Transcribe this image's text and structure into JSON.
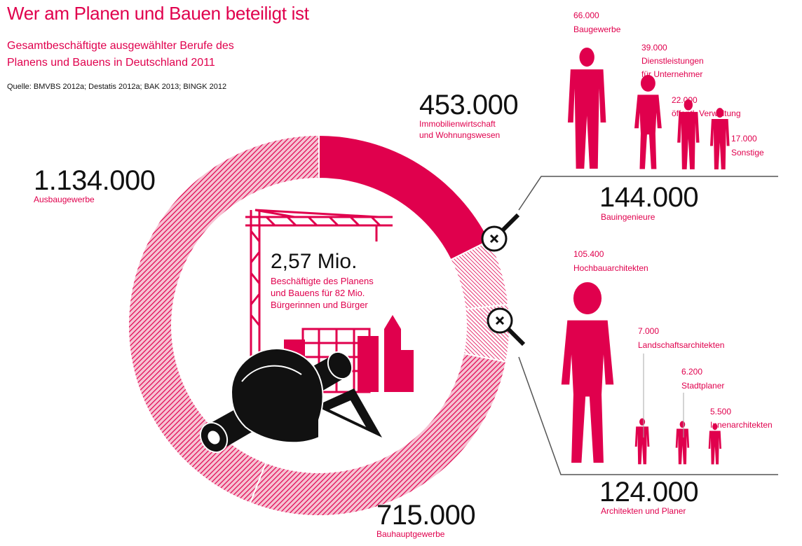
{
  "header": {
    "title": "Wer am Planen und Bauen beteiligt ist",
    "subtitle_line1": "Gesamtbeschäftigte ausgewählter Berufe des",
    "subtitle_line2": "Planens und Bauens in Deutschland 2011",
    "source": "Quelle: BMVBS 2012a; Destatis 2012a; BAK 2013; BINGK 2012"
  },
  "center": {
    "number": "2,57 Mio.",
    "line1": "Beschäftigte des Planens",
    "line2": "und Bauens für 82 Mio.",
    "line3": "Bürgerinnen und Bürger"
  },
  "ring_labels": {
    "immo_value": "453.000",
    "immo_line1": "Immobilienwirtschaft",
    "immo_line2": "und Wohnungswesen",
    "ausbau_value": "1.134.000",
    "ausbau_label": "Ausbaugewerbe",
    "bauhaupt_value": "715.000",
    "bauhaupt_label": "Bauhauptgewerbe"
  },
  "engineers": {
    "total_value": "144.000",
    "total_label": "Bauingenieure",
    "items": [
      {
        "value": "66.000",
        "label1": "Baugewerbe",
        "label2": ""
      },
      {
        "value": "39.000",
        "label1": "Dienstleistungen",
        "label2": "für Unternehmer"
      },
      {
        "value": "22.000",
        "label1": "öffentl. Verwaltung",
        "label2": ""
      },
      {
        "value": "17.000",
        "label1": "Sonstige",
        "label2": ""
      }
    ]
  },
  "architects": {
    "total_value": "124.000",
    "total_label": "Architekten und Planer",
    "items": [
      {
        "value": "105.400",
        "label": "Hochbauarchitekten"
      },
      {
        "value": "7.000",
        "label": "Landschaftsarchitekten"
      },
      {
        "value": "6.200",
        "label": "Stadtplaner"
      },
      {
        "value": "5.500",
        "label": "Innenarchitekten"
      }
    ]
  },
  "colors": {
    "accent": "#e0004d",
    "hatch_bg": "#f7c6d6",
    "dark": "#111111"
  },
  "icons": [
    "magnifier-icon",
    "crane-icon",
    "building-icon",
    "hard-hat-icon",
    "rolled-plan-icon",
    "set-square-icon",
    "person-icon"
  ],
  "chart_data": {
    "type": "pie",
    "title": "Wer am Planen und Bauen beteiligt ist",
    "total": 2570000,
    "slices": [
      {
        "name": "Immobilienwirtschaft und Wohnungswesen",
        "value": 453000,
        "style": "solid"
      },
      {
        "name": "Bauingenieure",
        "value": 144000,
        "style": "hatched"
      },
      {
        "name": "Architekten und Planer",
        "value": 124000,
        "style": "hatched"
      },
      {
        "name": "Bauhauptgewerbe",
        "value": 715000,
        "style": "hatched"
      },
      {
        "name": "Ausbaugewerbe",
        "value": 1134000,
        "style": "hatched"
      }
    ],
    "breakdowns": [
      {
        "parent": "Bauingenieure",
        "items": [
          {
            "name": "Baugewerbe",
            "value": 66000
          },
          {
            "name": "Dienstleistungen für Unternehmer",
            "value": 39000
          },
          {
            "name": "öffentl. Verwaltung",
            "value": 22000
          },
          {
            "name": "Sonstige",
            "value": 17000
          }
        ]
      },
      {
        "parent": "Architekten und Planer",
        "items": [
          {
            "name": "Hochbauarchitekten",
            "value": 105400
          },
          {
            "name": "Landschaftsarchitekten",
            "value": 7000
          },
          {
            "name": "Stadtplaner",
            "value": 6200
          },
          {
            "name": "Innenarchitekten",
            "value": 5500
          }
        ]
      }
    ]
  }
}
